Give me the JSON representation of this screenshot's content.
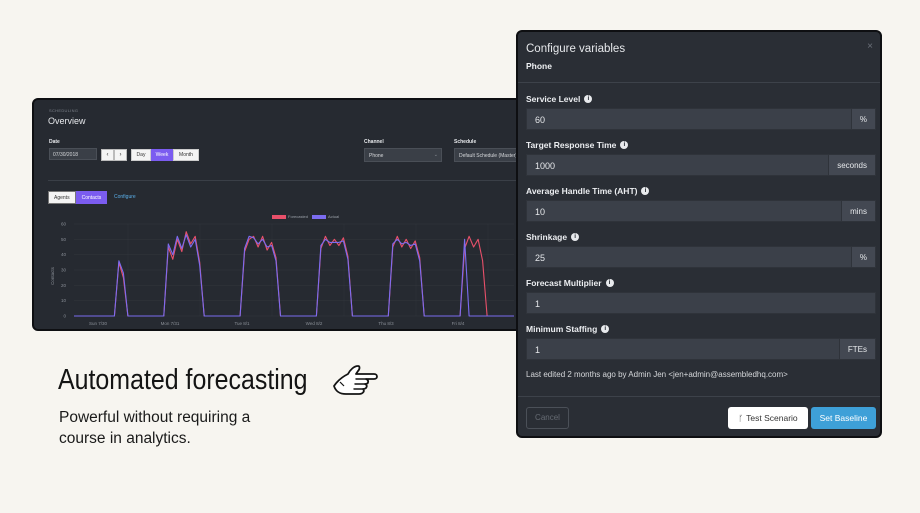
{
  "dashboard": {
    "breadcrumb": "SCHEDULING",
    "title": "Overview",
    "date_label": "Date",
    "date_value": "07/30/2018",
    "prev": "‹",
    "next": "›",
    "range_options": [
      "Day",
      "Week",
      "Month"
    ],
    "range_selected": "Week",
    "channel_label": "Channel",
    "channel_value": "Phone",
    "schedule_label": "Schedule",
    "schedule_value": "Default Schedule (Master)",
    "tabs": [
      "Agents",
      "Contacts"
    ],
    "tab_selected": "Contacts",
    "configure_link": "Configure",
    "legend": [
      {
        "name": "Forecasted",
        "color": "#e8506a"
      },
      {
        "name": "Actual",
        "color": "#7b6cf0"
      }
    ],
    "accent": "#7b5cf0"
  },
  "chart_data": {
    "type": "line",
    "ylabel": "Contacts",
    "ylim": [
      0,
      60
    ],
    "yticks": [
      0,
      10,
      20,
      30,
      40,
      50,
      60
    ],
    "xticks": [
      "Sun 7/30",
      "Mon 7/31",
      "Tue 8/1",
      "Wed 8/2",
      "Thu 8/3",
      "Fri 8/4"
    ],
    "series": [
      {
        "name": "Forecasted",
        "color": "#e8506a",
        "values": [
          0,
          0,
          0,
          0,
          0,
          0,
          0,
          0,
          0,
          0,
          35,
          25,
          0,
          0,
          0,
          0,
          0,
          0,
          0,
          0,
          0,
          45,
          37,
          50,
          42,
          55,
          47,
          52,
          35,
          0,
          0,
          0,
          0,
          0,
          0,
          0,
          0,
          0,
          42,
          50,
          52,
          45,
          52,
          43,
          48,
          38,
          0,
          0,
          0,
          0,
          0,
          0,
          0,
          0,
          0,
          44,
          52,
          46,
          50,
          46,
          51,
          39,
          0,
          0,
          0,
          0,
          0,
          0,
          0,
          0,
          0,
          45,
          52,
          45,
          50,
          44,
          49,
          38,
          0,
          0,
          0,
          0,
          0,
          0,
          0,
          0,
          0,
          44,
          52,
          45,
          50,
          36,
          0,
          0,
          0,
          0,
          0,
          0,
          0
        ]
      },
      {
        "name": "Actual",
        "color": "#7b6cf0",
        "values": [
          0,
          0,
          0,
          0,
          0,
          0,
          0,
          0,
          0,
          0,
          36,
          28,
          0,
          0,
          0,
          0,
          0,
          0,
          0,
          0,
          0,
          47,
          40,
          52,
          44,
          53,
          45,
          50,
          33,
          0,
          0,
          0,
          0,
          0,
          0,
          0,
          0,
          0,
          44,
          52,
          51,
          47,
          50,
          45,
          46,
          36,
          0,
          0,
          0,
          0,
          0,
          0,
          0,
          0,
          0,
          46,
          50,
          48,
          48,
          48,
          49,
          37,
          0,
          0,
          0,
          0,
          0,
          0,
          0,
          0,
          0,
          47,
          50,
          47,
          48,
          46,
          47,
          36,
          0,
          0,
          0,
          0,
          0,
          0,
          0,
          0,
          0,
          50,
          0,
          0,
          0,
          0,
          0,
          0,
          0,
          0,
          0,
          0,
          0
        ]
      }
    ]
  },
  "modal": {
    "title": "Configure variables",
    "subtitle": "Phone",
    "close": "×",
    "fields": [
      {
        "label": "Service Level",
        "value": "60",
        "unit": "%"
      },
      {
        "label": "Target Response Time",
        "value": "1000",
        "unit": "seconds"
      },
      {
        "label": "Average Handle Time (AHT)",
        "value": "10",
        "unit": "mins"
      },
      {
        "label": "Shrinkage",
        "value": "25",
        "unit": "%"
      },
      {
        "label": "Forecast Multiplier",
        "value": "1",
        "unit": ""
      },
      {
        "label": "Minimum Staffing",
        "value": "1",
        "unit": "FTEs"
      }
    ],
    "edited": "Last edited 2 months ago by Admin Jen <jen+admin@assembledhq.com>",
    "cancel": "Cancel",
    "test": "Test Scenario",
    "baseline": "Set Baseline",
    "test_icon": "branch-icon",
    "primary_color": "#3ea0d8"
  },
  "hero": {
    "headline": "Automated forecasting",
    "subtext": "Powerful without requiring a course in analytics.",
    "icon": "pointing-hand-icon"
  }
}
